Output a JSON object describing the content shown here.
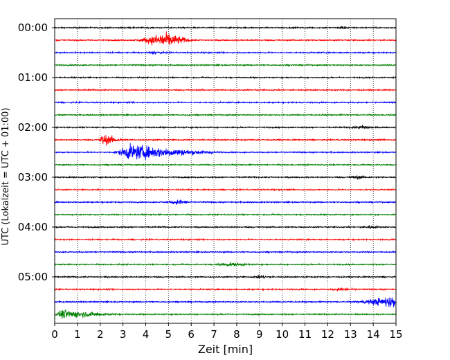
{
  "chart_data": {
    "type": "line",
    "subtype": "seismic-helicorder",
    "xlabel": "Zeit  [min]",
    "ylabel": "UTC (Lokalzeit = UTC + 01:00)",
    "xlim": [
      0,
      15
    ],
    "x_ticks": [
      "0",
      "1",
      "2",
      "3",
      "4",
      "5",
      "6",
      "7",
      "8",
      "9",
      "10",
      "11",
      "12",
      "13",
      "14",
      "15"
    ],
    "y_ticks": [
      {
        "label": "00:00",
        "row": 0
      },
      {
        "label": "01:00",
        "row": 4
      },
      {
        "label": "02:00",
        "row": 8
      },
      {
        "label": "03:00",
        "row": 12
      },
      {
        "label": "04:00",
        "row": 16
      },
      {
        "label": "05:00",
        "row": 20
      }
    ],
    "grid": {
      "vertical": true,
      "style": "dotted",
      "horizontal": false
    },
    "legend": "none",
    "color_cycle": [
      "#000000",
      "#ff0000",
      "#0000ff",
      "#008000"
    ],
    "rows": 24,
    "baseline_amplitude": 0.15,
    "events": [
      {
        "row": 1,
        "start_min": 3.4,
        "peak_min": 4.8,
        "end_min": 6.2,
        "amplitude": 1.9
      },
      {
        "row": 0,
        "start_min": 12.4,
        "peak_min": 12.6,
        "end_min": 13.0,
        "amplitude": 0.35
      },
      {
        "row": 2,
        "start_min": 4.0,
        "peak_min": 4.4,
        "end_min": 5.0,
        "amplitude": 0.3
      },
      {
        "row": 9,
        "start_min": 1.9,
        "peak_min": 2.1,
        "end_min": 3.2,
        "amplitude": 1.3
      },
      {
        "row": 10,
        "start_min": 2.5,
        "peak_min": 3.3,
        "end_min": 7.5,
        "amplitude": 1.8
      },
      {
        "row": 8,
        "start_min": 12.8,
        "peak_min": 13.6,
        "end_min": 14.2,
        "amplitude": 0.45
      },
      {
        "row": 12,
        "start_min": 12.8,
        "peak_min": 13.3,
        "end_min": 14.0,
        "amplitude": 0.35
      },
      {
        "row": 14,
        "start_min": 4.6,
        "peak_min": 5.5,
        "end_min": 6.1,
        "amplitude": 0.55
      },
      {
        "row": 16,
        "start_min": 13.3,
        "peak_min": 13.8,
        "end_min": 14.3,
        "amplitude": 0.35
      },
      {
        "row": 19,
        "start_min": 6.9,
        "peak_min": 7.6,
        "end_min": 9.0,
        "amplitude": 0.35
      },
      {
        "row": 20,
        "start_min": 8.5,
        "peak_min": 9.0,
        "end_min": 9.6,
        "amplitude": 0.35
      },
      {
        "row": 21,
        "start_min": 12.0,
        "peak_min": 12.5,
        "end_min": 13.5,
        "amplitude": 0.3
      },
      {
        "row": 22,
        "start_min": 13.0,
        "peak_min": 14.9,
        "end_min": 15.0,
        "amplitude": 1.5
      },
      {
        "row": 23,
        "start_min": 0.0,
        "peak_min": 0.3,
        "end_min": 3.0,
        "amplitude": 1.0
      }
    ]
  }
}
